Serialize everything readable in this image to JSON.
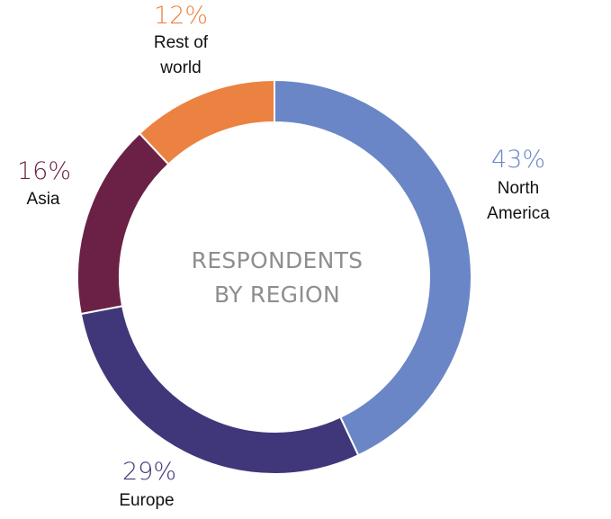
{
  "chart_data": {
    "type": "pie",
    "variant": "donut",
    "center_label": [
      "RESPONDENTS",
      "BY REGION"
    ],
    "slices": [
      {
        "name": "North America",
        "label_lines": [
          "North",
          "America"
        ],
        "value": 43,
        "value_label": "43%",
        "color": "#6a86c6"
      },
      {
        "name": "Europe",
        "label_lines": [
          "Europe"
        ],
        "value": 29,
        "value_label": "29%",
        "color": "#40377a"
      },
      {
        "name": "Asia",
        "label_lines": [
          "Asia"
        ],
        "value": 16,
        "value_label": "16%",
        "color": "#6b2145"
      },
      {
        "name": "Rest of world",
        "label_lines": [
          "Rest of",
          "world"
        ],
        "value": 12,
        "value_label": "12%",
        "color": "#eb8242"
      }
    ]
  }
}
